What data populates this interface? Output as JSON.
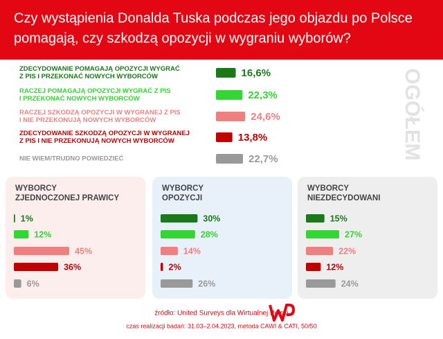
{
  "title": [
    "Czy wystąpienia Donalda Tuska podczas jego objazdu po Polsce",
    "pomagają, czy szkodzą opozycji w wygraniu wyborów?"
  ],
  "chart_data": [
    {
      "type": "bar",
      "orientation": "horizontal",
      "title": "OGÓŁEM",
      "categories": [
        [
          "ZDECYDOWANIE POMAGAJĄ OPOZYCJI WYGRAĆ",
          "Z PIS I PRZEKONAĆ NOWYCH WYBORCÓW"
        ],
        [
          "RACZEJ POMAGAJĄ OPOZYCJI WYGRAĆ Z PIS",
          "I PRZEKONAĆ NOWYCH WYBORCÓW"
        ],
        [
          "RACZEJ SZKODZĄ OPOZYCJI W WYGRANEJ Z PIS",
          "I NIE PRZEKONUJĄ NOWYCH WYBORCÓW"
        ],
        [
          "ZDECYDOWANIE SZKODZĄ OPOZYCJI W WYGRANEJ",
          "Z PIS I NIE PRZEKONUJĄ NOWYCH WYBORCÓW"
        ],
        [
          "NIE WIEM/TRUDNO POWIEDZIEĆ"
        ]
      ],
      "values": [
        16.6,
        22.3,
        24.6,
        13.8,
        22.7
      ],
      "value_labels": [
        "16,6%",
        "22,3%",
        "24,6%",
        "13,8%",
        "22,7%"
      ],
      "colors": [
        "#1a7a1a",
        "#33d633",
        "#f08080",
        "#c00000",
        "#999999"
      ],
      "xlim": [
        0,
        25
      ]
    },
    {
      "type": "bar",
      "orientation": "horizontal",
      "title": [
        "WYBORCY",
        "ZJEDNOCZONEJ PRAWICY"
      ],
      "values": [
        1,
        12,
        45,
        36,
        6
      ],
      "value_labels": [
        "1%",
        "12%",
        "45%",
        "36%",
        "6%"
      ],
      "colors": [
        "#1a7a1a",
        "#33d633",
        "#f08080",
        "#c00000",
        "#999999"
      ],
      "background": "#fdeeee",
      "xlim": [
        0,
        50
      ]
    },
    {
      "type": "bar",
      "orientation": "horizontal",
      "title": [
        "WYBORCY",
        "OPOZYCJI"
      ],
      "values": [
        30,
        28,
        14,
        2,
        26
      ],
      "value_labels": [
        "30%",
        "28%",
        "14%",
        "2%",
        "26%"
      ],
      "colors": [
        "#1a7a1a",
        "#33d633",
        "#f08080",
        "#c00000",
        "#999999"
      ],
      "background": "#e8f0fa",
      "xlim": [
        0,
        50
      ]
    },
    {
      "type": "bar",
      "orientation": "horizontal",
      "title": [
        "WYBORCY",
        "NIEZDECYDOWANI"
      ],
      "values": [
        15,
        27,
        22,
        12,
        24
      ],
      "value_labels": [
        "15%",
        "27%",
        "22%",
        "12%",
        "24%"
      ],
      "colors": [
        "#1a7a1a",
        "#33d633",
        "#f08080",
        "#c00000",
        "#999999"
      ],
      "background": "#eeeeee",
      "xlim": [
        0,
        50
      ]
    }
  ],
  "source": "źródło: United Surveys dla Wirtualnej Polski",
  "note": "czas realizacji badań: 31.03–2.04.2023, metoda CAWI & CATI, 50/50"
}
